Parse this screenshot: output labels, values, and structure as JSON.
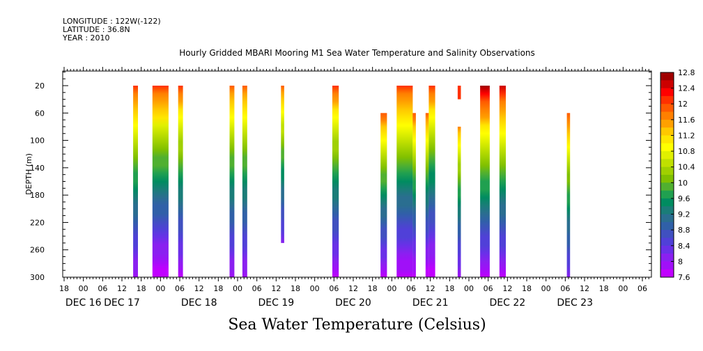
{
  "header": {
    "longitude": "LONGITUDE : 122W(-122)",
    "latitude": "LATITUDE : 36.8N",
    "year": "YEAR : 2010"
  },
  "bottom_title": "Sea Water Temperature (Celsius)",
  "chart_data": {
    "type": "heatmap",
    "title": "Hourly Gridded MBARI Mooring M1 Sea Water Temperature and Salinity Observations",
    "ylabel": "DEPTH (m)",
    "xlabel": "",
    "y_ticks": [
      20,
      60,
      100,
      140,
      180,
      220,
      260,
      300
    ],
    "y_range": [
      300,
      0
    ],
    "x_range_hours": [
      0,
      180
    ],
    "x_hour_ticks": [
      {
        "h": 0,
        "label": "18"
      },
      {
        "h": 6,
        "label": "00"
      },
      {
        "h": 12,
        "label": "06"
      },
      {
        "h": 18,
        "label": "12"
      },
      {
        "h": 24,
        "label": "18"
      },
      {
        "h": 30,
        "label": "00"
      },
      {
        "h": 36,
        "label": "06"
      },
      {
        "h": 42,
        "label": "12"
      },
      {
        "h": 48,
        "label": "18"
      },
      {
        "h": 54,
        "label": "00"
      },
      {
        "h": 60,
        "label": "06"
      },
      {
        "h": 66,
        "label": "12"
      },
      {
        "h": 72,
        "label": "18"
      },
      {
        "h": 78,
        "label": "00"
      },
      {
        "h": 84,
        "label": "06"
      },
      {
        "h": 90,
        "label": "12"
      },
      {
        "h": 96,
        "label": "18"
      },
      {
        "h": 102,
        "label": "00"
      },
      {
        "h": 108,
        "label": "06"
      },
      {
        "h": 114,
        "label": "12"
      },
      {
        "h": 120,
        "label": "18"
      },
      {
        "h": 126,
        "label": "00"
      },
      {
        "h": 132,
        "label": "06"
      },
      {
        "h": 138,
        "label": "12"
      },
      {
        "h": 144,
        "label": "18"
      },
      {
        "h": 150,
        "label": "00"
      },
      {
        "h": 156,
        "label": "06"
      },
      {
        "h": 162,
        "label": "12"
      },
      {
        "h": 168,
        "label": "18"
      },
      {
        "h": 174,
        "label": "00"
      },
      {
        "h": 180,
        "label": "06"
      },
      {
        "h": 186,
        "label": "12"
      },
      {
        "h": 192,
        "label": "18"
      }
    ],
    "date_labels": [
      {
        "h": 6,
        "label": "DEC 16"
      },
      {
        "h": 18,
        "label": "DEC 17"
      },
      {
        "h": 42,
        "label": "DEC 18"
      },
      {
        "h": 66,
        "label": "DEC 19"
      },
      {
        "h": 90,
        "label": "DEC 20"
      },
      {
        "h": 114,
        "label": "DEC 21"
      },
      {
        "h": 138,
        "label": "DEC 22"
      },
      {
        "h": 159,
        "label": "DEC 23"
      }
    ],
    "colorbar": {
      "labels": [
        "12.8",
        "12.4",
        "12",
        "11.6",
        "11.2",
        "10.8",
        "10.4",
        "10",
        "9.6",
        "9.2",
        "8.8",
        "8.4",
        "8",
        "7.6"
      ],
      "colors": [
        "#a00000",
        "#cc0000",
        "#ff0000",
        "#ff3000",
        "#ff5a00",
        "#ff8000",
        "#ffa000",
        "#ffc800",
        "#ffe600",
        "#ffff00",
        "#e0f000",
        "#c0e000",
        "#a0d000",
        "#80c000",
        "#50b030",
        "#20a050",
        "#008c60",
        "#1a7d78",
        "#2a6e90",
        "#3060a8",
        "#4050c0",
        "#5040d8",
        "#6a30e8",
        "#8a20f0",
        "#a010f8",
        "#c000ff"
      ]
    },
    "segments": [
      {
        "h0": 21.5,
        "h1": 23,
        "dtop": 20,
        "dbot": 300,
        "ttop": 12.1,
        "tbot": 7.9
      },
      {
        "h0": 27.5,
        "h1": 32.5,
        "dtop": 20,
        "dbot": 300,
        "ttop": 12.2,
        "tbot": 7.6
      },
      {
        "h0": 35.5,
        "h1": 37,
        "dtop": 20,
        "dbot": 300,
        "ttop": 12.1,
        "tbot": 7.8
      },
      {
        "h0": 51.5,
        "h1": 53,
        "dtop": 20,
        "dbot": 300,
        "ttop": 11.9,
        "tbot": 7.9
      },
      {
        "h0": 55.5,
        "h1": 57,
        "dtop": 20,
        "dbot": 300,
        "ttop": 11.9,
        "tbot": 7.9
      },
      {
        "h0": 67.5,
        "h1": 68.5,
        "dtop": 20,
        "dbot": 250,
        "ttop": 11.9,
        "tbot": 8.2
      },
      {
        "h0": 83.5,
        "h1": 85.5,
        "dtop": 20,
        "dbot": 300,
        "ttop": 12.1,
        "tbot": 7.8
      },
      {
        "h0": 98.5,
        "h1": 100.5,
        "dtop": 60,
        "dbot": 300,
        "ttop": 12.0,
        "tbot": 7.8
      },
      {
        "h0": 103.5,
        "h1": 108.5,
        "dtop": 20,
        "dbot": 300,
        "ttop": 12.2,
        "tbot": 7.7
      },
      {
        "h0": 108.5,
        "h1": 109.5,
        "dtop": 60,
        "dbot": 300,
        "ttop": 12.0,
        "tbot": 7.7
      },
      {
        "h0": 112.5,
        "h1": 113.5,
        "dtop": 60,
        "dbot": 300,
        "ttop": 12.0,
        "tbot": 7.6
      },
      {
        "h0": 113.5,
        "h1": 115.5,
        "dtop": 20,
        "dbot": 300,
        "ttop": 12.1,
        "tbot": 7.6
      },
      {
        "h0": 122.5,
        "h1": 123.5,
        "dtop": 20,
        "dbot": 40,
        "ttop": 12.1,
        "tbot": 12.0
      },
      {
        "h0": 122.5,
        "h1": 123.5,
        "dtop": 80,
        "dbot": 300,
        "ttop": 11.7,
        "tbot": 8.0
      },
      {
        "h0": 129.5,
        "h1": 132.5,
        "dtop": 20,
        "dbot": 300,
        "ttop": 12.7,
        "tbot": 7.8
      },
      {
        "h0": 135.5,
        "h1": 137.5,
        "dtop": 20,
        "dbot": 300,
        "ttop": 12.5,
        "tbot": 7.8
      },
      {
        "h0": 156.5,
        "h1": 157.5,
        "dtop": 60,
        "dbot": 300,
        "ttop": 12.0,
        "tbot": 8.2
      }
    ]
  }
}
